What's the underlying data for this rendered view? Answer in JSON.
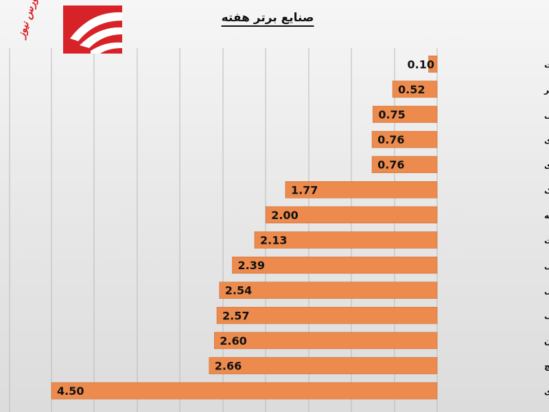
{
  "title": "صنایع برتر هفته",
  "logo": {
    "text": "بورس نیوز"
  },
  "colors": {
    "bar": "#ec8b4d",
    "bar_stroke": "#d06a28",
    "logo_red": "#d72228"
  },
  "chart_data": {
    "type": "bar",
    "orientation": "horizontal",
    "title": "صنایع برتر هفته",
    "xlim": [
      0,
      4.5
    ],
    "categories": [
      "حمل و نقل انبارداری و ارتباطات",
      "قند و شکر",
      "واسطه گریهای مالی و پولی",
      "کانی غیر فلزی",
      "استخراج کانه های فلزی",
      "کاشی و سرامیک",
      "زراعت و خدمات وابسته",
      "انبوه سازی املاک و مستغلات",
      "پیمانکاری صنعتی",
      "خرده فروشی",
      "استخراج نفت گاز جز اکتشاف",
      "استخراج سایر معادن",
      "سیمان آهک گچ",
      "محصولات کاغذی"
    ],
    "values": [
      0.1,
      0.52,
      0.75,
      0.76,
      0.76,
      1.77,
      2.0,
      2.13,
      2.39,
      2.54,
      2.57,
      2.6,
      2.66,
      4.5
    ],
    "labels": [
      "0.10",
      "0.52",
      "0.75",
      "0.76",
      "0.76",
      "1.77",
      "2.00",
      "2.13",
      "2.39",
      "2.54",
      "2.57",
      "2.60",
      "2.66",
      "4.50"
    ],
    "grid": true
  }
}
